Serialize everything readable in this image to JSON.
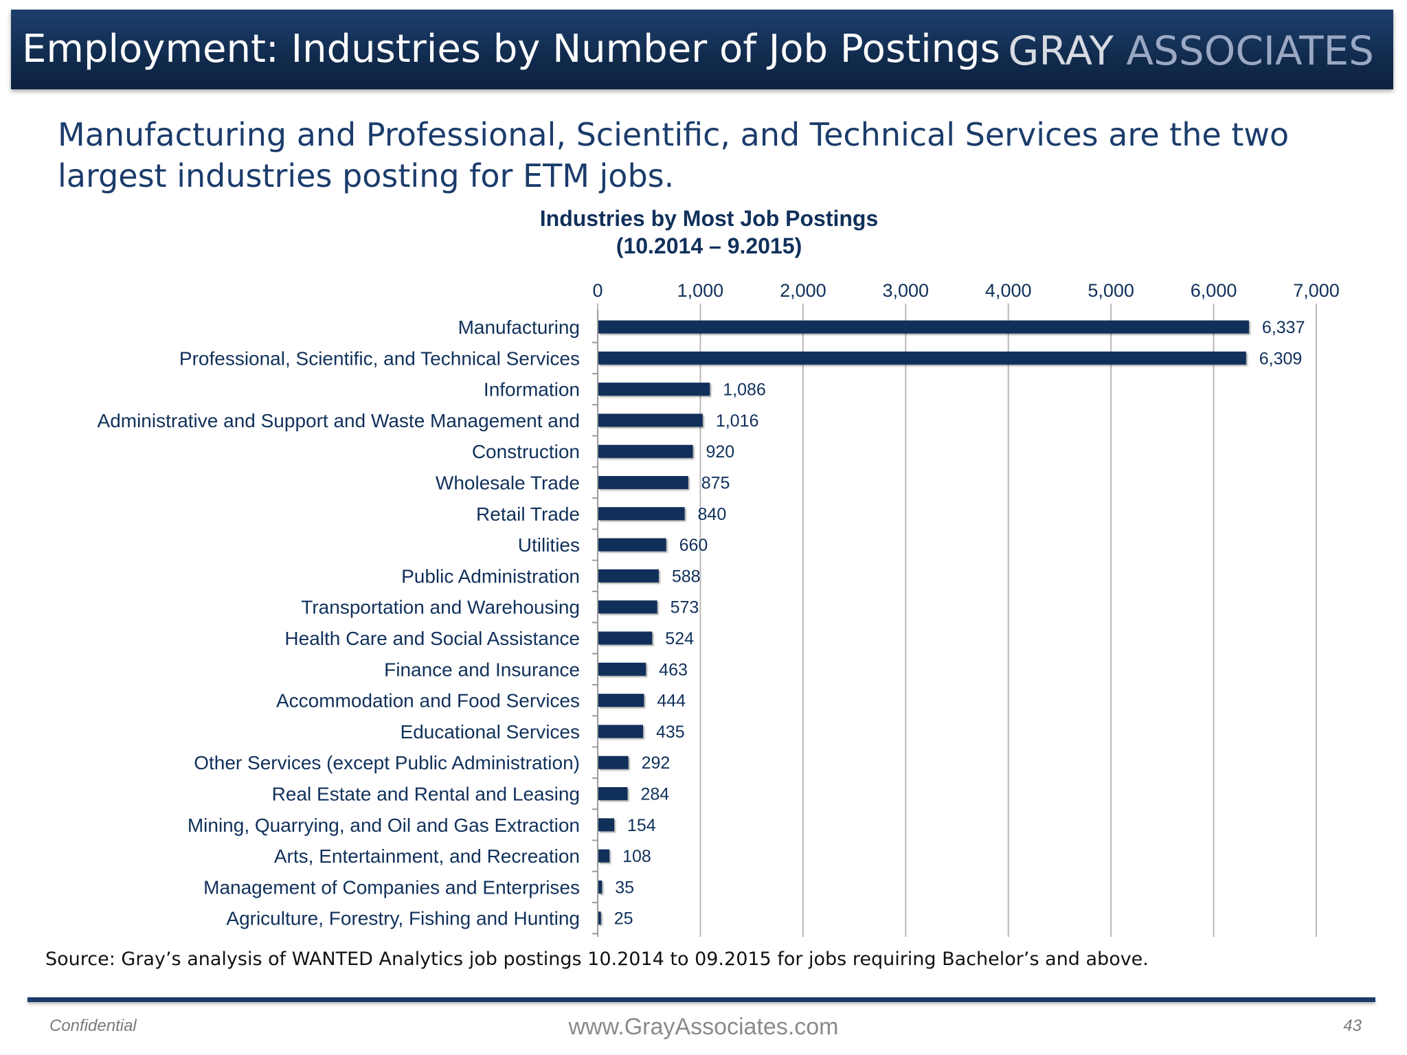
{
  "header": {
    "title": "Employment:  Industries by Number of Job Postings",
    "logo_part1": "GRAY",
    "logo_part2": "ASSOCIATES"
  },
  "subheadline": "Manufacturing and Professional, Scientific, and Technical Services are the two largest industries posting for ETM jobs.",
  "chart_title_line1": "Industries by Most Job Postings",
  "chart_title_line2": "(10.2014 – 9.2015)",
  "chart_data": {
    "type": "bar",
    "orientation": "horizontal",
    "title": "Industries by Most Job Postings (10.2014 – 9.2015)",
    "xlim": [
      0,
      7000
    ],
    "xticks": [
      0,
      1000,
      2000,
      3000,
      4000,
      5000,
      6000,
      7000
    ],
    "xtick_labels": [
      "0",
      "1,000",
      "2,000",
      "3,000",
      "4,000",
      "5,000",
      "6,000",
      "7,000"
    ],
    "x_axis_position": "top",
    "grid": true,
    "bar_color": "#10305a",
    "categories": [
      "Manufacturing",
      "Professional, Scientific, and Technical Services",
      "Information",
      "Administrative and Support and Waste Management and",
      "Construction",
      "Wholesale Trade",
      "Retail Trade",
      "Utilities",
      "Public Administration",
      "Transportation and Warehousing",
      "Health Care and Social Assistance",
      "Finance and Insurance",
      "Accommodation and Food Services",
      "Educational Services",
      "Other Services (except Public Administration)",
      "Real Estate and Rental and Leasing",
      "Mining, Quarrying, and Oil and Gas Extraction",
      "Arts, Entertainment, and Recreation",
      "Management of Companies and Enterprises",
      "Agriculture, Forestry, Fishing and Hunting"
    ],
    "values": [
      6337,
      6309,
      1086,
      1016,
      920,
      875,
      840,
      660,
      588,
      573,
      524,
      463,
      444,
      435,
      292,
      284,
      154,
      108,
      35,
      25
    ],
    "value_labels": [
      "6,337",
      "6,309",
      "1,086",
      "1,016",
      "920",
      "875",
      "840",
      "660",
      "588",
      "573",
      "524",
      "463",
      "444",
      "435",
      "292",
      "284",
      "154",
      "108",
      "35",
      "25"
    ]
  },
  "source": "Source:  Gray’s analysis of WANTED Analytics job postings 10.2014 to 09.2015 for jobs requiring Bachelor’s and above.",
  "footer": {
    "confidential": "Confidential",
    "website": "www.GrayAssociates.com",
    "page_number": "43"
  }
}
